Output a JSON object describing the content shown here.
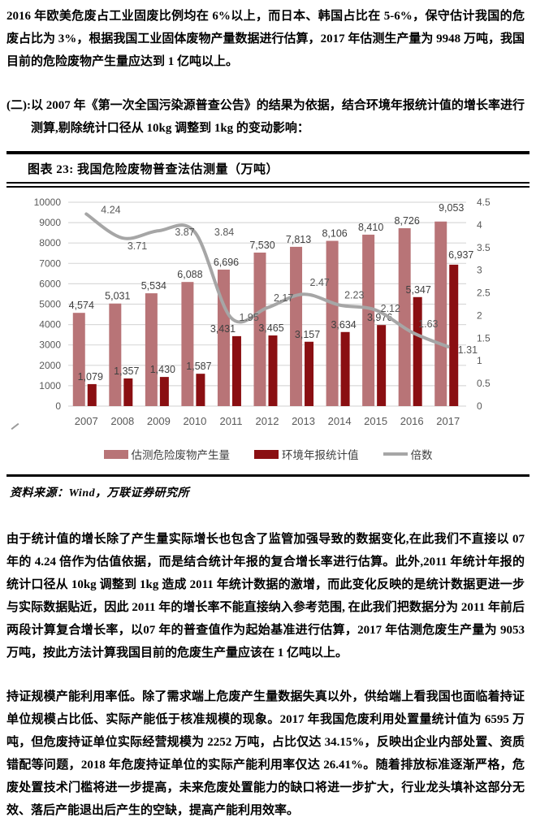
{
  "paragraphs": {
    "p1": "2016 年欧美危废占工业固废比例均在 6%以上，而日本、韩国占比在 5-6%，保守估计我国的危废占比为 3%，根据我国工业固体废物产量数据进行估算，2017 年估测生产量为 9948 万吨，我国目前的危险废物产生量应达到 1 亿吨以上。",
    "p2": "(二):以 2007 年《第一次全国污染源普查公告》的结果为依据，结合环境年报统计值的增长率进行测算,剔除统计口径从 10kg 调整到 1kg 的变动影响：",
    "p3": "由于统计值的增长除了产生量实际增长也包含了监管加强导致的数据变化,在此我们不直接以 07 年的 4.24 倍作为估值依据，而是结合统计年报的复合增长率进行估算。此外,2011 年统计年报的统计口径从 10kg 调整到 1kg 造成 2011 年统计数据的激增，而此变化反映的是统计数据更进一步与实际数据贴近，因此 2011 年的增长率不能直接纳入参考范围, 在此我们把数据分为 2011 年前后两段计算复合增长率，以07 年的普查值作为起始基准进行估算，2017 年估测危废生产量为 9053 万吨，按此方法计算我国目前的危废生产量应该在 1 亿吨以上。",
    "p4_lead": "持证规模产能利用率低。",
    "p4_rest": "除了需求端上危废产生量数据失真以外，供给端上看我国也面临着持证单位规模占比低、实际产能低于核准规模的现象。2017 年我国危废利用处置量统计值为 6595 万吨，但危废持证单位实际经营规模为 2252 万吨，占比仅达 34.15%，反映出企业内部处置、资质错配等问题，2018 年危废持证单位的实际产能利用率仅达 26.41%。随着排放标准逐渐严格，危废处置技术门槛将进一步提高，未来危废处置能力的缺口将进一步扩大，行业龙头填补这部分无效、落后产能退出后产生的空缺，提高产能利用效率。"
  },
  "figure": {
    "title": "图表 23: 我国危险废物普查法估测量（万吨）",
    "source": "资料来源：Wind，万联证券研究所"
  },
  "chart_data": {
    "type": "bar",
    "title": "我国危险废物普查法估测量（万吨）",
    "categories": [
      "2007",
      "2008",
      "2009",
      "2010",
      "2011",
      "2012",
      "2013",
      "2014",
      "2015",
      "2016",
      "2017"
    ],
    "series": [
      {
        "name": "估测危险废物产生量",
        "type": "bar",
        "axis": "left",
        "color": "#b87477",
        "values": [
          4574,
          5031,
          5534,
          6088,
          6696,
          7530,
          7813,
          8106,
          8410,
          8726,
          9053
        ]
      },
      {
        "name": "环境年报统计值",
        "type": "bar",
        "axis": "left",
        "color": "#8a0f12",
        "values": [
          1079,
          1357,
          1430,
          1587,
          3431,
          3465,
          3157,
          3634,
          3976,
          5347,
          6937
        ]
      },
      {
        "name": "倍数",
        "type": "line",
        "axis": "right",
        "color": "#a6a6a6",
        "values": [
          4.24,
          3.71,
          3.87,
          3.84,
          1.95,
          2.17,
          2.47,
          2.23,
          2.12,
          1.63,
          1.31
        ]
      }
    ],
    "left_axis": {
      "min": 0,
      "max": 10000,
      "step": 1000
    },
    "right_axis": {
      "min": 0,
      "max": 4.5,
      "step": 0.5
    },
    "grid": true,
    "legend_position": "bottom",
    "colors": {
      "grid": "#d9d9d9",
      "axis_text": "#595959"
    }
  }
}
